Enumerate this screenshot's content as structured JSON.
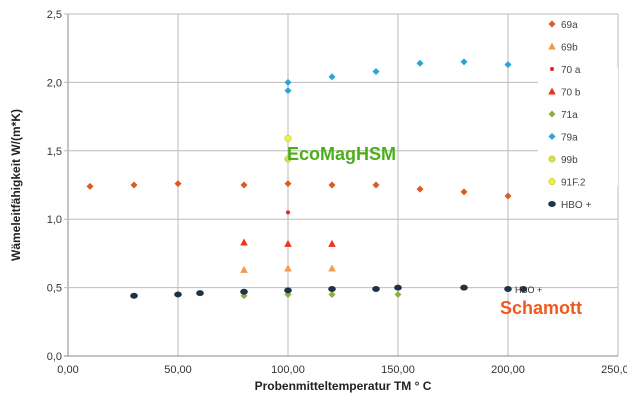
{
  "chart_data": {
    "type": "scatter",
    "title": "",
    "xlabel": "Probenmitteltemperatur TM °  C",
    "ylabel": "Wämeleitfähigkeit  W/(m*K)",
    "xlim": [
      0,
      250
    ],
    "ylim": [
      0,
      2.5
    ],
    "xticks": [
      "0,00",
      "50,00",
      "100,00",
      "150,00",
      "200,00",
      "250,00"
    ],
    "yticks": [
      "0,0",
      "0,5",
      "1,0",
      "1,5",
      "2,0",
      "2,5"
    ],
    "grid": true,
    "legend_position": "right",
    "series": [
      {
        "name": "69a",
        "marker": "diamond",
        "color": "#e05a1e",
        "points": [
          [
            10,
            1.24
          ],
          [
            30,
            1.25
          ],
          [
            50,
            1.26
          ],
          [
            80,
            1.25
          ],
          [
            100,
            1.26
          ],
          [
            120,
            1.25
          ],
          [
            140,
            1.25
          ],
          [
            160,
            1.22
          ],
          [
            180,
            1.2
          ],
          [
            200,
            1.17
          ]
        ]
      },
      {
        "name": "69b",
        "marker": "triangle",
        "color": "#f59a4a",
        "points": [
          [
            80,
            0.63
          ],
          [
            100,
            0.64
          ],
          [
            120,
            0.64
          ]
        ]
      },
      {
        "name": "70 a",
        "marker": "dot",
        "color": "#ee1c24",
        "points": [
          [
            100,
            1.05
          ]
        ]
      },
      {
        "name": "70 b",
        "marker": "triangle",
        "color": "#f5301a",
        "points": [
          [
            80,
            0.83
          ],
          [
            100,
            0.82
          ],
          [
            120,
            0.82
          ]
        ]
      },
      {
        "name": "71a",
        "marker": "diamond",
        "color": "#8db13a",
        "points": [
          [
            80,
            0.44
          ],
          [
            100,
            0.45
          ],
          [
            120,
            0.45
          ],
          [
            150,
            0.45
          ]
        ]
      },
      {
        "name": "79a",
        "marker": "diamond",
        "color": "#2aa3d8",
        "points": [
          [
            100,
            2.0
          ],
          [
            100,
            1.94
          ],
          [
            120,
            2.04
          ],
          [
            140,
            2.08
          ],
          [
            160,
            2.14
          ],
          [
            180,
            2.15
          ],
          [
            200,
            2.13
          ]
        ]
      },
      {
        "name": "99b",
        "marker": "circle",
        "color": "#d9df4a",
        "points": [
          [
            100,
            1.44
          ]
        ]
      },
      {
        "name": "91F.2",
        "marker": "circle",
        "color": "#eef03c",
        "points": [
          [
            100,
            1.59
          ]
        ]
      },
      {
        "name": "HBO +",
        "marker": "ellipse",
        "color": "#1f3144",
        "points": [
          [
            30,
            0.44
          ],
          [
            50,
            0.45
          ],
          [
            60,
            0.46
          ],
          [
            80,
            0.47
          ],
          [
            100,
            0.48
          ],
          [
            120,
            0.49
          ],
          [
            140,
            0.49
          ],
          [
            150,
            0.5
          ],
          [
            180,
            0.5
          ],
          [
            200,
            0.49
          ],
          [
            207,
            0.49
          ]
        ]
      }
    ],
    "annotations": [
      {
        "text": "EcoMagHSM",
        "color": "#4caf1a"
      },
      {
        "text": "Schamott",
        "color": "#f05a1e"
      },
      {
        "text": "HBO +",
        "color": "#333333"
      }
    ]
  }
}
